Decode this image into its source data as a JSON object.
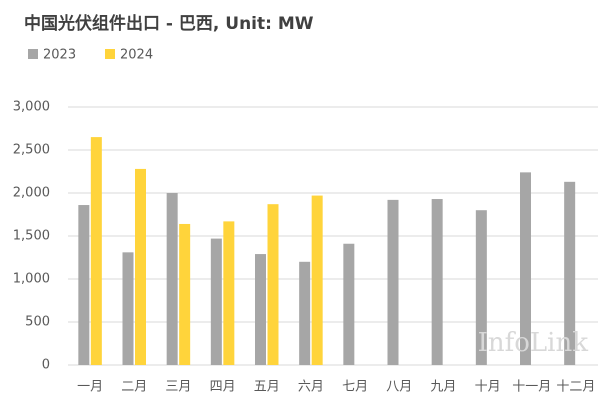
{
  "chart_data": {
    "type": "bar",
    "title": "中国光伏组件出口 - 巴西, Unit: MW",
    "categories": [
      "一月",
      "二月",
      "三月",
      "四月",
      "五月",
      "六月",
      "七月",
      "八月",
      "九月",
      "十月",
      "十一月",
      "十二月"
    ],
    "series": [
      {
        "name": "2023",
        "color": "#a6a6a6",
        "values": [
          1860,
          1310,
          2000,
          1470,
          1290,
          1200,
          1410,
          1920,
          1930,
          1800,
          2240,
          2130
        ]
      },
      {
        "name": "2024",
        "color": "#ffd43b",
        "values": [
          2650,
          2280,
          1640,
          1670,
          1870,
          1970,
          null,
          null,
          null,
          null,
          null,
          null
        ]
      }
    ],
    "ylim": [
      0,
      3000
    ],
    "yticks": [
      0,
      500,
      {
        "value": 1000,
        "label": "1,000"
      },
      {
        "value": 1500,
        "label": "1,500"
      },
      {
        "value": 2000,
        "label": "2,000"
      },
      {
        "value": 2500,
        "label": "2,500"
      },
      {
        "value": 3000,
        "label": "3,000"
      }
    ],
    "grid": true,
    "legend": "top-left",
    "annotations": [
      "InfoLink"
    ]
  }
}
